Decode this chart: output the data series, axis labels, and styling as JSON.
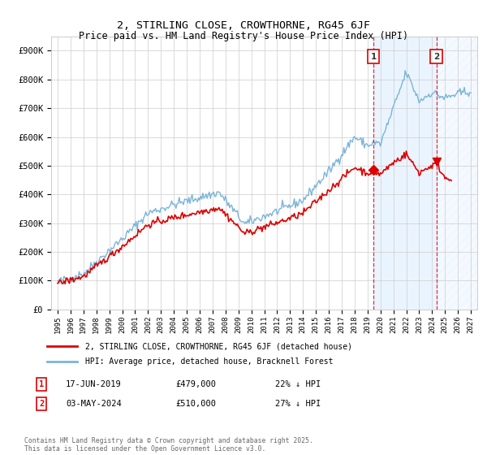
{
  "title": "2, STIRLING CLOSE, CROWTHORNE, RG45 6JF",
  "subtitle": "Price paid vs. HM Land Registry's House Price Index (HPI)",
  "hpi_color": "#7ab4d8",
  "price_color": "#dd0000",
  "vline_color": "#dd0000",
  "transaction_1": {
    "date": "17-JUN-2019",
    "price": "£479,000",
    "hpi_pct": "22% ↓ HPI",
    "label": "1"
  },
  "transaction_2": {
    "date": "03-MAY-2024",
    "price": "£510,000",
    "hpi_pct": "27% ↓ HPI",
    "label": "2"
  },
  "transaction_1_x": 2019.46,
  "transaction_2_x": 2024.34,
  "ylim": [
    0,
    950000
  ],
  "xlim": [
    1994.5,
    2027.5
  ],
  "yticks": [
    0,
    100000,
    200000,
    300000,
    400000,
    500000,
    600000,
    700000,
    800000,
    900000
  ],
  "ytick_labels": [
    "£0",
    "£100K",
    "£200K",
    "£300K",
    "£400K",
    "£500K",
    "£600K",
    "£700K",
    "£800K",
    "£900K"
  ],
  "xticks": [
    1995,
    1996,
    1997,
    1998,
    1999,
    2000,
    2001,
    2002,
    2003,
    2004,
    2005,
    2006,
    2007,
    2008,
    2009,
    2010,
    2011,
    2012,
    2013,
    2014,
    2015,
    2016,
    2017,
    2018,
    2019,
    2020,
    2021,
    2022,
    2023,
    2024,
    2025,
    2026,
    2027
  ],
  "legend_hpi_label": "HPI: Average price, detached house, Bracknell Forest",
  "legend_price_label": "2, STIRLING CLOSE, CROWTHORNE, RG45 6JF (detached house)",
  "footer": "Contains HM Land Registry data © Crown copyright and database right 2025.\nThis data is licensed under the Open Government Licence v3.0.",
  "bg_color": "#ffffff",
  "plot_bg_color": "#ffffff",
  "grid_color": "#cccccc",
  "shade_color": "#ddeeff"
}
